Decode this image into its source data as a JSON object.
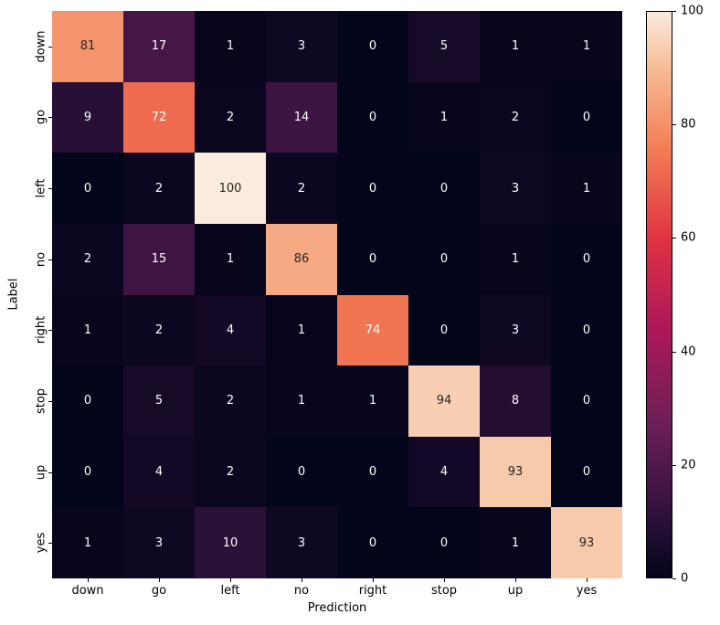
{
  "chart_data": {
    "type": "heatmap",
    "title": "",
    "xlabel": "Prediction",
    "ylabel": "Label",
    "x_categories": [
      "down",
      "go",
      "left",
      "no",
      "right",
      "stop",
      "up",
      "yes"
    ],
    "y_categories": [
      "down",
      "go",
      "left",
      "no",
      "right",
      "stop",
      "up",
      "yes"
    ],
    "matrix": [
      [
        81,
        17,
        1,
        3,
        0,
        5,
        1,
        1
      ],
      [
        9,
        72,
        2,
        14,
        0,
        1,
        2,
        0
      ],
      [
        0,
        2,
        100,
        2,
        0,
        0,
        3,
        1
      ],
      [
        2,
        15,
        1,
        86,
        0,
        0,
        1,
        0
      ],
      [
        1,
        2,
        4,
        1,
        74,
        0,
        3,
        0
      ],
      [
        0,
        5,
        2,
        1,
        1,
        94,
        8,
        0
      ],
      [
        0,
        4,
        2,
        0,
        0,
        4,
        93,
        0
      ],
      [
        1,
        3,
        10,
        3,
        0,
        0,
        1,
        93
      ]
    ],
    "vmin": 0,
    "vmax": 100,
    "colorbar_ticks": [
      100,
      80,
      60,
      40,
      20,
      0
    ],
    "legend_position": "right-colorbar",
    "grid": false,
    "colormap": {
      "name": "rocket",
      "stops": [
        [
          0.0,
          "#03051A"
        ],
        [
          0.12,
          "#33123E"
        ],
        [
          0.28,
          "#701F57"
        ],
        [
          0.44,
          "#AD1759"
        ],
        [
          0.6,
          "#E13342"
        ],
        [
          0.76,
          "#F37E55"
        ],
        [
          0.9,
          "#F6BC95"
        ],
        [
          1.0,
          "#FAEBDD"
        ]
      ]
    },
    "annotation_text_colors": {
      "on_light": "#262626",
      "on_dark": "#FFFFFF"
    }
  }
}
